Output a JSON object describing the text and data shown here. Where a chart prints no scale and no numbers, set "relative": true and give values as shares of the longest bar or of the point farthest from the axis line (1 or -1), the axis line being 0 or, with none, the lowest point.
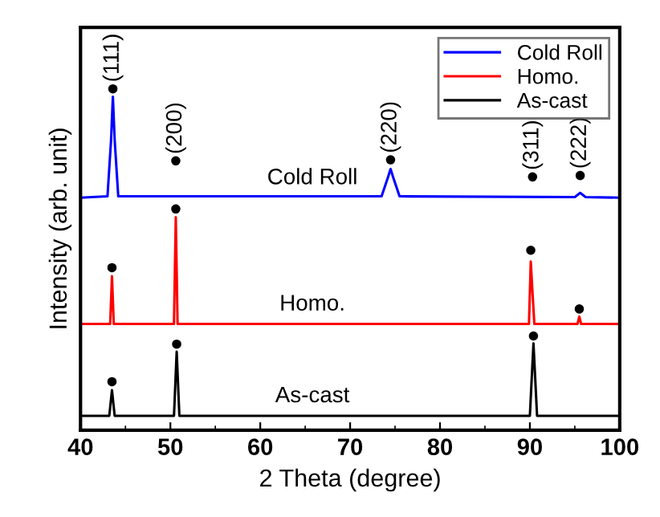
{
  "chart_data": {
    "type": "line",
    "relative": true,
    "xlabel": "2 Theta (degree)",
    "ylabel": "Intensity (arb. unit)",
    "xlim": [
      40,
      100
    ],
    "xticks": [
      40,
      50,
      60,
      70,
      80,
      90,
      100
    ],
    "legend": "top right",
    "grid": false,
    "marker": "none",
    "series": [
      {
        "name": "Cold Roll",
        "color": "#0000ff",
        "x": [
          40,
          43.0,
          43.4,
          43.6,
          43.8,
          44.2,
          73.5,
          74.2,
          74.5,
          74.8,
          75.5,
          95.0,
          95.6,
          96.2,
          100
        ],
        "values": [
          0.681,
          0.685,
          0.85,
          0.977,
          0.85,
          0.685,
          0.685,
          0.74,
          0.765,
          0.74,
          0.685,
          0.683,
          0.695,
          0.683,
          0.681
        ]
      },
      {
        "name": "Homo.",
        "color": "#ff0000",
        "x": [
          40,
          43.3,
          43.5,
          43.7,
          50.4,
          50.6,
          50.8,
          89.9,
          90.1,
          90.3,
          90.5,
          95.3,
          95.5,
          95.7,
          100
        ],
        "values": [
          0.311,
          0.311,
          0.451,
          0.311,
          0.311,
          0.624,
          0.311,
          0.311,
          0.494,
          0.4,
          0.311,
          0.311,
          0.333,
          0.311,
          0.311
        ]
      },
      {
        "name": "As-cast",
        "color": "#000000",
        "x": [
          40,
          43.2,
          43.5,
          43.8,
          50.4,
          50.7,
          51.0,
          90.0,
          90.4,
          90.8,
          100
        ],
        "values": [
          0.042,
          0.042,
          0.117,
          0.042,
          0.042,
          0.23,
          0.042,
          0.042,
          0.254,
          0.042,
          0.042
        ]
      },
      {
        "type": "scatter",
        "color": "#000000",
        "marker": "circle",
        "x": [
          43.6,
          50.6,
          74.5,
          90.3,
          95.6,
          43.5,
          50.6,
          90.1,
          95.5,
          43.5,
          50.7,
          90.4
        ],
        "values": [
          1.0,
          0.789,
          0.792,
          0.742,
          0.746,
          0.476,
          0.648,
          0.527,
          0.355,
          0.142,
          0.252,
          0.276
        ]
      }
    ],
    "annotations": [
      {
        "text": "(111)",
        "x": 43.6,
        "y": 1.0
      },
      {
        "text": "(200)",
        "x": 50.6,
        "y": 0.789
      },
      {
        "text": "(220)",
        "x": 74.5,
        "y": 0.792
      },
      {
        "text": "(311)",
        "x": 90.3,
        "y": 0.742
      },
      {
        "text": "(222)",
        "x": 95.6,
        "y": 0.746
      },
      "Cold Roll",
      "Homo.",
      "As-cast"
    ]
  }
}
